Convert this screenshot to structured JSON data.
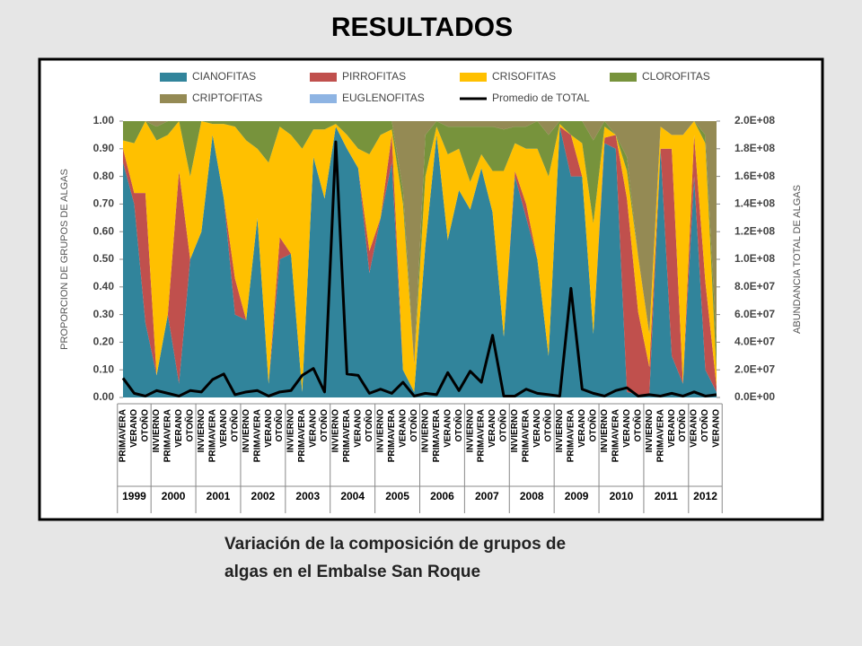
{
  "header": {
    "title": "RESULTADOS"
  },
  "caption": [
    "Variación de la composición de grupos de",
    "algas en el Embalse San Roque"
  ],
  "chart_data": {
    "type": "stacked_area",
    "ylabel": "PROPORCION DE GRUPOS DE  ALGAS",
    "y2label": "ABUNDANCIA  TOTAL DE ALGAS",
    "year_groups": [
      {
        "label": "1999",
        "seasons": [
          "PRIMAVERA",
          "VERANO",
          "OTOÑO"
        ]
      },
      {
        "label": "2000",
        "seasons": [
          "INVIERNO",
          "PRIMAVERA",
          "VERANO",
          "OTOÑO"
        ]
      },
      {
        "label": "2001",
        "seasons": [
          "INVIERNO",
          "PRIMAVERA",
          "VERANO",
          "OTOÑO"
        ]
      },
      {
        "label": "2002",
        "seasons": [
          "INVIERNO",
          "PRIMAVERA",
          "VERANO",
          "OTOÑO"
        ]
      },
      {
        "label": "2003",
        "seasons": [
          "INVIERNO",
          "PRIMAVERA",
          "VERANO",
          "OTOÑO"
        ]
      },
      {
        "label": "2004",
        "seasons": [
          "INVIERNO",
          "PRIMAVERA",
          "VERANO",
          "OTOÑO"
        ]
      },
      {
        "label": "2005",
        "seasons": [
          "INVIERNO",
          "PRIMAVERA",
          "VERANO",
          "OTOÑO"
        ]
      },
      {
        "label": "2006",
        "seasons": [
          "INVIERNO",
          "PRIMAVERA",
          "VERANO",
          "OTOÑO"
        ]
      },
      {
        "label": "2007",
        "seasons": [
          "INVIERNO",
          "PRIMAVERA",
          "VERANO",
          "OTOÑO"
        ]
      },
      {
        "label": "2008",
        "seasons": [
          "INVIERNO",
          "PRIMAVERA",
          "VERANO",
          "OTOÑO"
        ]
      },
      {
        "label": "2009",
        "seasons": [
          "INVIERNO",
          "PRIMAVERA",
          "VERANO",
          "OTOÑO"
        ]
      },
      {
        "label": "2010",
        "seasons": [
          "INVIERNO",
          "PRIMAVERA",
          "VERANO",
          "OTOÑO"
        ]
      },
      {
        "label": "2011",
        "seasons": [
          "INVIERNO",
          "PRIMAVERA",
          "VERANO",
          "OTOÑO"
        ]
      },
      {
        "label": "2012",
        "seasons": [
          "VERANO",
          "OTOÑO",
          "VERANO"
        ]
      }
    ],
    "ylim": [
      0,
      1
    ],
    "yticks": [
      {
        "value": 0,
        "label": "0.00"
      },
      {
        "value": 0.1,
        "label": "0.10"
      },
      {
        "value": 0.2,
        "label": "0.20"
      },
      {
        "value": 0.3,
        "label": "0.30"
      },
      {
        "value": 0.4,
        "label": "0.40"
      },
      {
        "value": 0.5,
        "label": "0.50"
      },
      {
        "value": 0.6,
        "label": "0.60"
      },
      {
        "value": 0.7,
        "label": "0.70"
      },
      {
        "value": 0.8,
        "label": "0.80"
      },
      {
        "value": 0.9,
        "label": "0.90"
      },
      {
        "value": 1,
        "label": "1.00"
      }
    ],
    "y2lim": [
      0,
      200000000
    ],
    "y2ticks": [
      {
        "value": 0,
        "label": "0.0E+00"
      },
      {
        "value": 20000000,
        "label": "2.0E+07"
      },
      {
        "value": 40000000,
        "label": "4.0E+07"
      },
      {
        "value": 60000000,
        "label": "6.0E+07"
      },
      {
        "value": 80000000,
        "label": "8.0E+07"
      },
      {
        "value": 100000000,
        "label": "1.0E+08"
      },
      {
        "value": 120000000,
        "label": "1.2E+08"
      },
      {
        "value": 140000000,
        "label": "1.4E+08"
      },
      {
        "value": 160000000,
        "label": "1.6E+08"
      },
      {
        "value": 180000000,
        "label": "1.8E+08"
      },
      {
        "value": 200000000,
        "label": "2.0E+08"
      }
    ],
    "series": [
      {
        "name": "CIANOFITAS",
        "color": "#31849b",
        "values": [
          0.85,
          0.7,
          0.27,
          0.08,
          0.3,
          0.05,
          0.5,
          0.6,
          0.95,
          0.72,
          0.3,
          0.28,
          0.65,
          0.05,
          0.5,
          0.52,
          0.02,
          0.87,
          0.72,
          0.98,
          0.9,
          0.83,
          0.45,
          0.65,
          0.85,
          0.1,
          0.02,
          0.55,
          0.95,
          0.57,
          0.75,
          0.68,
          0.83,
          0.67,
          0.22,
          0.8,
          0.65,
          0.5,
          0.15,
          0.98,
          0.8,
          0.8,
          0.23,
          0.92,
          0.9,
          0.02,
          0.01,
          0.01,
          0.9,
          0.15,
          0.05,
          0.8,
          0.1,
          0.02
        ]
      },
      {
        "name": "PIRROFITAS",
        "color": "#c0504d",
        "values": [
          0.05,
          0.04,
          0.47,
          0,
          0,
          0.77,
          0,
          0,
          0,
          0,
          0.13,
          0,
          0,
          0,
          0.08,
          0,
          0,
          0,
          0,
          0,
          0,
          0,
          0.08,
          0,
          0.1,
          0,
          0,
          0,
          0,
          0,
          0,
          0,
          0,
          0,
          0,
          0.02,
          0.05,
          0,
          0,
          0,
          0.15,
          0,
          0,
          0.02,
          0.05,
          0.7,
          0.3,
          0.1,
          0,
          0.75,
          0,
          0.15,
          0.32,
          0.02
        ]
      },
      {
        "name": "CRISOFITAS",
        "color": "#ffc000",
        "values": [
          0.03,
          0.18,
          0.26,
          0.85,
          0.65,
          0.18,
          0.3,
          0.4,
          0.04,
          0.27,
          0.55,
          0.65,
          0.25,
          0.8,
          0.4,
          0.43,
          0.88,
          0.1,
          0.25,
          0.01,
          0.05,
          0.07,
          0.35,
          0.3,
          0.02,
          0.6,
          0.1,
          0.25,
          0.03,
          0.31,
          0.15,
          0.1,
          0.05,
          0.15,
          0.6,
          0.1,
          0.2,
          0.4,
          0.65,
          0.01,
          0,
          0.12,
          0.4,
          0.04,
          0,
          0.1,
          0.2,
          0.12,
          0.08,
          0.05,
          0.9,
          0.05,
          0.5,
          0.05
        ]
      },
      {
        "name": "CLOROFITAS",
        "color": "#77933c",
        "values": [
          0.07,
          0.08,
          0,
          0.05,
          0.05,
          0,
          0.2,
          0,
          0.01,
          0.01,
          0.02,
          0.07,
          0.1,
          0.15,
          0.02,
          0.05,
          0.1,
          0.03,
          0.03,
          0.01,
          0.05,
          0.1,
          0.12,
          0.05,
          0.03,
          0.05,
          0,
          0.15,
          0.02,
          0.1,
          0.08,
          0.2,
          0.1,
          0.16,
          0.15,
          0.06,
          0.08,
          0.1,
          0.15,
          0.01,
          0.05,
          0.08,
          0.3,
          0.02,
          0,
          0.05,
          0,
          0,
          0,
          0,
          0,
          0,
          0.03,
          0.1
        ]
      },
      {
        "name": "CRIPTOFITAS",
        "color": "#948a54",
        "values": [
          0,
          0,
          0,
          0.02,
          0,
          0,
          0,
          0,
          0,
          0,
          0,
          0,
          0,
          0,
          0,
          0,
          0,
          0,
          0,
          0,
          0,
          0,
          0,
          0,
          0,
          0.25,
          0.88,
          0.05,
          0,
          0.02,
          0.02,
          0.02,
          0.02,
          0.02,
          0.03,
          0.02,
          0.02,
          0,
          0.05,
          0,
          0,
          0,
          0.07,
          0,
          0.05,
          0.13,
          0.49,
          0.77,
          0.02,
          0.05,
          0.05,
          0,
          0.05,
          0.81
        ]
      },
      {
        "name": "EUGLENOFITAS",
        "color": "#8eb4e3",
        "values": [
          0,
          0,
          0,
          0,
          0,
          0,
          0,
          0,
          0,
          0,
          0,
          0,
          0,
          0,
          0,
          0,
          0,
          0,
          0,
          0,
          0,
          0,
          0,
          0,
          0,
          0,
          0,
          0,
          0,
          0,
          0,
          0,
          0,
          0,
          0,
          0,
          0,
          0,
          0,
          0,
          0,
          0,
          0,
          0,
          0,
          0,
          0,
          0,
          0,
          0,
          0,
          0,
          0,
          0
        ]
      },
      {
        "name": "Promedio de TOTAL",
        "color": "#000000",
        "axis": "y2",
        "type": "line",
        "values": [
          14000000,
          3000000,
          1000000,
          5000000,
          3000000,
          1000000,
          5000000,
          4000000,
          13000000,
          17000000,
          2000000,
          4000000,
          5000000,
          1000000,
          4000000,
          5000000,
          16000000,
          21000000,
          4000000,
          185000000,
          17000000,
          16000000,
          3000000,
          6000000,
          3000000,
          11000000,
          1000000,
          3000000,
          2000000,
          18000000,
          5000000,
          19000000,
          11000000,
          45000000,
          1000000,
          1000000,
          6000000,
          3000000,
          2000000,
          1000000,
          79000000,
          6000000,
          3000000,
          1000000,
          5000000,
          7000000,
          1000000,
          2000000,
          1000000,
          3000000,
          1000000,
          4000000,
          1000000,
          2000000
        ]
      }
    ]
  }
}
